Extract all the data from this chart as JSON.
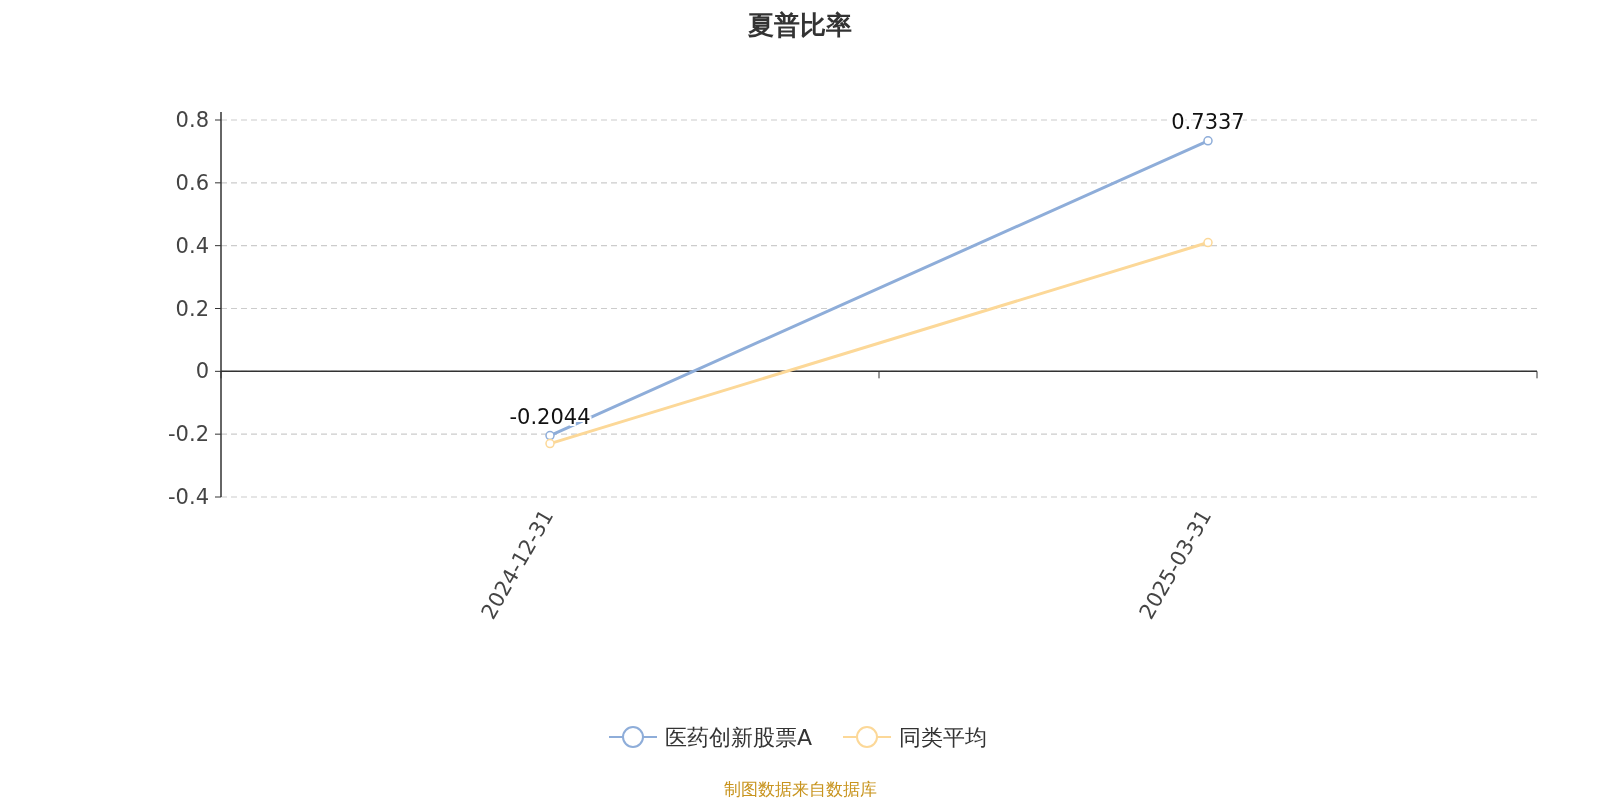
{
  "chart_data": {
    "type": "line",
    "title": "夏普比率",
    "categories": [
      "2024-12-31",
      "2025-03-31"
    ],
    "series": [
      {
        "name": "医药创新股票A",
        "color": "#8eadd9",
        "values": [
          -0.2044,
          0.7337
        ],
        "value_labels": [
          "-0.2044",
          "0.7337"
        ]
      },
      {
        "name": "同类平均",
        "color": "#fcd898",
        "values": [
          -0.23,
          0.41
        ]
      }
    ],
    "ylim": [
      -0.4,
      0.8
    ],
    "yticks": [
      -0.4,
      -0.2,
      0,
      0.2,
      0.4,
      0.6,
      0.8
    ],
    "grid": "y",
    "legend": "bottom",
    "marker": "circle",
    "annotations": [
      "制图数据来自数据库"
    ]
  }
}
